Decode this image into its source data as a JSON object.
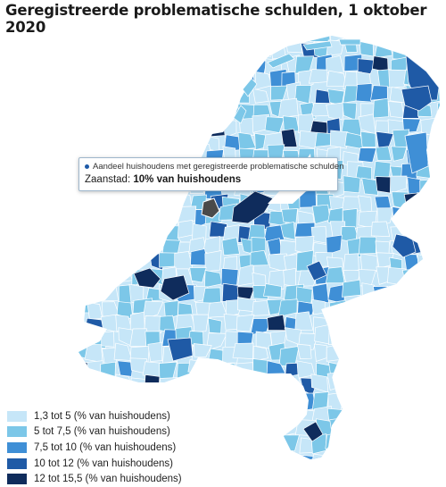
{
  "title": "Geregistreerde problematische schulden, 1 oktober 2020",
  "tooltip": {
    "series_label": "Aandeel huishoudens met geregistreerde problematische schulden",
    "municipality": "Zaanstad:",
    "value_text": "10% van huishoudens"
  },
  "legend": [
    {
      "label": "1,3 tot 5 (% van huishoudens)",
      "color": "#c6e6f8"
    },
    {
      "label": "5 tot 7,5 (% van huishoudens)",
      "color": "#7cc7e8"
    },
    {
      "label": "7,5 tot 10 (% van huishoudens)",
      "color": "#3f8fd6"
    },
    {
      "label": "10 tot 12 (% van huishoudens)",
      "color": "#1f5aa6"
    },
    {
      "label": "12 tot 15,5 (% van huishoudens)",
      "color": "#0f2c5c"
    }
  ],
  "colors": {
    "highlight": "#4a4a4a",
    "border": "#ffffff",
    "lake": "#ffffff"
  }
}
